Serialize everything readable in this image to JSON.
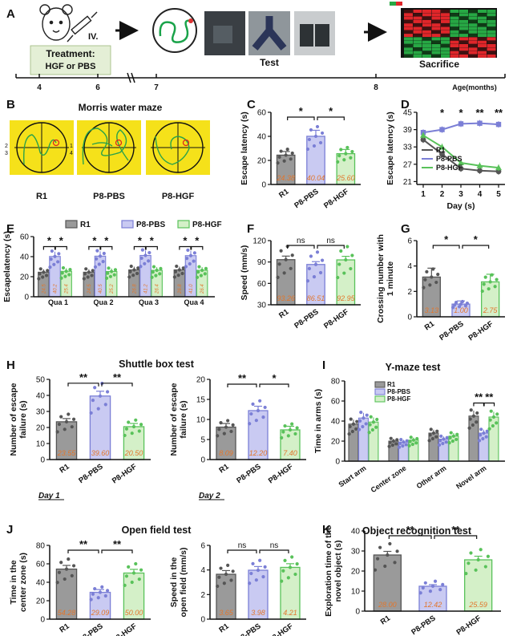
{
  "figure": {
    "panel_letters": [
      "A",
      "B",
      "C",
      "D",
      "E",
      "F",
      "G",
      "H",
      "I",
      "J",
      "K"
    ],
    "colors": {
      "R1": "#555555",
      "PBS": "#7b7fd6",
      "HGF": "#59c25a",
      "heatmap_red": "#e0262a",
      "heatmap_green": "#27a844",
      "maze_bg": "#f5e11a"
    }
  },
  "timeline": {
    "treatment_title": "Treatment:",
    "treatment_sub": "HGF or PBS",
    "injection_label": "IV.",
    "test_label": "Test",
    "sacrifice_label": "Sacrifice",
    "axis_label": "Age(months)",
    "ticks": [
      "4",
      "6",
      "7",
      "8"
    ]
  },
  "maze": {
    "title": "Morris water maze",
    "groups": [
      "R1",
      "P8-PBS",
      "P8-HGF"
    ],
    "quadrant_numbers": [
      "1",
      "2",
      "3",
      "4"
    ]
  },
  "chart_data": [
    {
      "id": "C",
      "type": "bar",
      "ylabel": "Escape latency (s)",
      "ylim": [
        0,
        60
      ],
      "yticks": [
        0,
        20,
        40,
        60
      ],
      "categories": [
        "R1",
        "P8-PBS",
        "P8-HGF"
      ],
      "values": [
        24.38,
        40.04,
        25.6
      ],
      "value_labels": [
        "24.38",
        "40.04",
        "25.60"
      ],
      "errors": [
        3,
        5,
        3.5
      ],
      "significance": [
        {
          "from": 0,
          "to": 1,
          "label": "*"
        },
        {
          "from": 1,
          "to": 2,
          "label": "*"
        }
      ]
    },
    {
      "id": "D",
      "type": "line",
      "ylabel": "Escape latency (s)",
      "xlabel": "Day (s)",
      "x": [
        1,
        2,
        3,
        4,
        5
      ],
      "ylim": [
        20,
        45
      ],
      "yticks": [
        21,
        27,
        33,
        39,
        45
      ],
      "series": [
        {
          "name": "R1",
          "values": [
            35.5,
            30.5,
            25.5,
            24.8,
            24.5
          ]
        },
        {
          "name": "P8-PBS",
          "values": [
            38,
            39,
            41,
            41.2,
            40.8
          ]
        },
        {
          "name": "P8-HGF",
          "values": [
            37,
            33,
            27.5,
            26.5,
            25.8
          ]
        }
      ],
      "stars": [
        "",
        "*",
        "*",
        "**",
        "**"
      ]
    },
    {
      "id": "E",
      "type": "bar",
      "ylabel": "Escapelatency (s)",
      "ylim": [
        0,
        60
      ],
      "yticks": [
        0,
        20,
        40,
        60
      ],
      "legend": [
        "R1",
        "P8-PBS",
        "P8-HGF"
      ],
      "categories": [
        "Qua 1",
        "Qua 2",
        "Qua 3",
        "Qua 4"
      ],
      "series": [
        {
          "name": "R1",
          "values": [
            24.5,
            24.5,
            26.8,
            26.8
          ],
          "labels": [
            "24.5",
            "24.5",
            "26.8",
            "26.8"
          ]
        },
        {
          "name": "P8-PBS",
          "values": [
            40.2,
            40.5,
            41.2,
            41
          ],
          "labels": [
            "40.2",
            "40.5",
            "41.2",
            "41.0"
          ]
        },
        {
          "name": "P8-HGF",
          "values": [
            25.4,
            25.2,
            26.4,
            26.4
          ],
          "labels": [
            "25.4",
            "25.2",
            "26.4",
            "26.4"
          ]
        }
      ],
      "significance": [
        "*",
        "*"
      ]
    },
    {
      "id": "F",
      "type": "bar",
      "ylabel": "Speed (mm/s)",
      "ylim": [
        30,
        120
      ],
      "yticks": [
        30,
        60,
        90,
        120
      ],
      "categories": [
        "R1",
        "P8-PBS",
        "P8-HGF"
      ],
      "values": [
        93.26,
        86.51,
        92.95
      ],
      "value_labels": [
        "93.26",
        "86.51",
        "92.95"
      ],
      "errors": [
        5,
        4,
        5
      ],
      "significance": [
        {
          "from": 0,
          "to": 1,
          "label": "ns"
        },
        {
          "from": 1,
          "to": 2,
          "label": "ns"
        }
      ]
    },
    {
      "id": "G",
      "type": "bar",
      "ylabel": "Crossing number with 1 minute",
      "ylim": [
        0,
        6
      ],
      "yticks": [
        0,
        2,
        4,
        6
      ],
      "categories": [
        "R1",
        "P8-PBS",
        "P8-HGF"
      ],
      "values": [
        3.13,
        1.0,
        2.75
      ],
      "value_labels": [
        "3.13",
        "1.00",
        "2.75"
      ],
      "errors": [
        0.7,
        0.25,
        0.6
      ],
      "significance": [
        {
          "from": 0,
          "to": 1,
          "label": "*"
        },
        {
          "from": 1,
          "to": 2,
          "label": "*"
        }
      ]
    },
    {
      "id": "H1",
      "type": "bar",
      "title": "Shuttle box test",
      "ylabel": "Number of escape failure (s)",
      "ylim": [
        0,
        50
      ],
      "yticks": [
        0,
        10,
        20,
        30,
        40,
        50
      ],
      "categories": [
        "R1",
        "P8-PBS",
        "P8-HGF"
      ],
      "values": [
        23.55,
        39.6,
        20.5
      ],
      "value_labels": [
        "23.55",
        "39.60",
        "20.50"
      ],
      "errors": [
        2,
        3,
        2
      ],
      "caption": "Day 1",
      "significance": [
        {
          "from": 0,
          "to": 1,
          "label": "**"
        },
        {
          "from": 1,
          "to": 2,
          "label": "**"
        }
      ]
    },
    {
      "id": "H2",
      "type": "bar",
      "ylabel": "Number of escape failure (s)",
      "ylim": [
        0,
        20
      ],
      "yticks": [
        0,
        5,
        10,
        15,
        20
      ],
      "categories": [
        "R1",
        "P8-PBS",
        "P8-HGF"
      ],
      "values": [
        8.09,
        12.2,
        7.4
      ],
      "value_labels": [
        "8.09",
        "12.20",
        "7.40"
      ],
      "errors": [
        0.9,
        1.1,
        0.9
      ],
      "caption": "Day 2",
      "significance": [
        {
          "from": 0,
          "to": 1,
          "label": "**"
        },
        {
          "from": 1,
          "to": 2,
          "label": "*"
        }
      ]
    },
    {
      "id": "I",
      "type": "bar",
      "title": "Y-maze test",
      "ylabel": "Time in arms (s)",
      "ylim": [
        0,
        80
      ],
      "yticks": [
        0,
        20,
        40,
        60,
        80
      ],
      "legend": [
        "R1",
        "P8-PBS",
        "P8-HGF"
      ],
      "categories": [
        "Start arm",
        "Center zone",
        "Other arm",
        "Novel arm"
      ],
      "series": [
        {
          "name": "R1",
          "values": [
            37,
            20,
            28,
            45
          ]
        },
        {
          "name": "P8-PBS",
          "values": [
            43,
            19,
            22,
            28
          ]
        },
        {
          "name": "P8-HGF",
          "values": [
            39,
            21,
            25,
            44
          ]
        }
      ],
      "significance": [
        "**",
        "**"
      ]
    },
    {
      "id": "J1",
      "type": "bar",
      "title": "Open field test",
      "ylabel": "Time in the center zone (s)",
      "ylim": [
        0,
        80
      ],
      "yticks": [
        0,
        20,
        40,
        60,
        80
      ],
      "categories": [
        "R1",
        "P8-PBS",
        "P8-HGF"
      ],
      "values": [
        54.28,
        29.09,
        50.0
      ],
      "value_labels": [
        "54.28",
        "29.09",
        "50.00"
      ],
      "errors": [
        4,
        3,
        4
      ],
      "significance": [
        {
          "from": 0,
          "to": 1,
          "label": "**"
        },
        {
          "from": 1,
          "to": 2,
          "label": "**"
        }
      ]
    },
    {
      "id": "J2",
      "type": "bar",
      "ylabel": "Speed in the open field (mm/s)",
      "ylim": [
        0,
        6
      ],
      "yticks": [
        0,
        2,
        4,
        6
      ],
      "categories": [
        "R1",
        "P8-PBS",
        "P8-HGF"
      ],
      "values": [
        3.65,
        3.98,
        4.21
      ],
      "value_labels": [
        "3.65",
        "3.98",
        "4.21"
      ],
      "errors": [
        0.3,
        0.3,
        0.3
      ],
      "significance": [
        {
          "from": 0,
          "to": 1,
          "label": "ns"
        },
        {
          "from": 1,
          "to": 2,
          "label": "ns"
        }
      ]
    },
    {
      "id": "K",
      "type": "bar",
      "title": "Object recognition test",
      "ylabel": "Exploration time of the novel object (s)",
      "ylim": [
        0,
        40
      ],
      "yticks": [
        0,
        10,
        20,
        30,
        40
      ],
      "categories": [
        "R1",
        "P8-PBS",
        "P8-HGF"
      ],
      "values": [
        28.0,
        12.42,
        25.59
      ],
      "value_labels": [
        "28.00",
        "12.42",
        "25.59"
      ],
      "errors": [
        1.8,
        0.8,
        1.8
      ],
      "significance": [
        {
          "from": 0,
          "to": 1,
          "label": "**"
        },
        {
          "from": 1,
          "to": 2,
          "label": "**"
        }
      ]
    }
  ]
}
